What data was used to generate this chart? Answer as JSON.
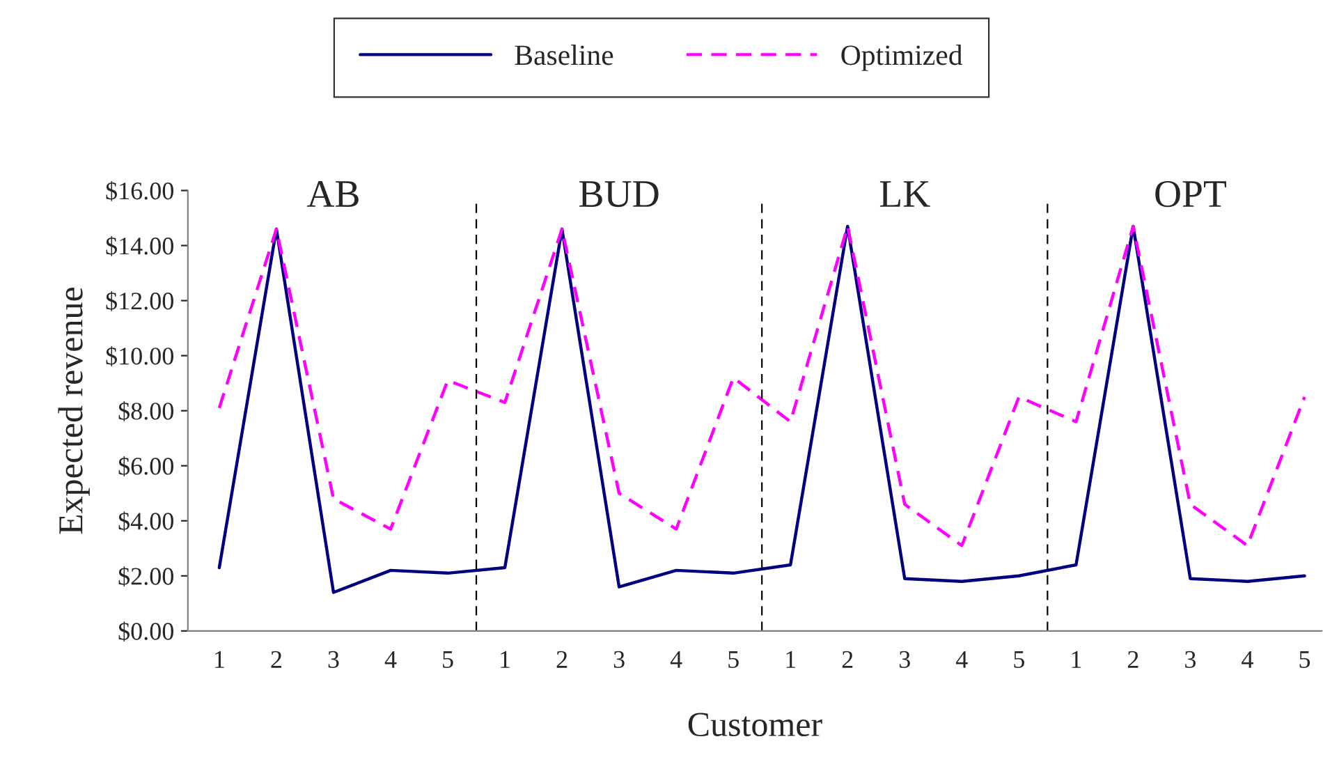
{
  "chart_data": {
    "type": "line",
    "xlabel": "Customer",
    "ylabel": "Expected revenue",
    "categories": [
      "1",
      "2",
      "3",
      "4",
      "5",
      "1",
      "2",
      "3",
      "4",
      "5",
      "1",
      "2",
      "3",
      "4",
      "5",
      "1",
      "2",
      "3",
      "4",
      "5"
    ],
    "series": [
      {
        "name": "Baseline",
        "color": "#000080",
        "line_style": "solid",
        "values": [
          2.3,
          14.6,
          1.4,
          2.2,
          2.1,
          2.3,
          14.6,
          1.6,
          2.2,
          2.1,
          2.4,
          14.7,
          1.9,
          1.8,
          2.0,
          2.4,
          14.7,
          1.9,
          1.8,
          2.0
        ]
      },
      {
        "name": "Optimized",
        "color": "#ff00ff",
        "line_style": "dashed",
        "values": [
          8.1,
          14.6,
          4.8,
          3.7,
          9.1,
          8.3,
          14.6,
          5.0,
          3.7,
          9.2,
          7.6,
          14.7,
          4.6,
          3.1,
          8.5,
          7.6,
          14.7,
          4.6,
          3.1,
          8.5
        ]
      }
    ],
    "ylim": [
      0,
      16
    ],
    "yticks": [
      {
        "value": 0,
        "label": "$0.00"
      },
      {
        "value": 2,
        "label": "$2.00"
      },
      {
        "value": 4,
        "label": "$4.00"
      },
      {
        "value": 6,
        "label": "$6.00"
      },
      {
        "value": 8,
        "label": "$8.00"
      },
      {
        "value": 10,
        "label": "$10.00"
      },
      {
        "value": 12,
        "label": "$12.00"
      },
      {
        "value": 14,
        "label": "$14.00"
      },
      {
        "value": 16,
        "label": "$16.00"
      }
    ],
    "annotations": [
      "AB",
      "BUD",
      "LK",
      "OPT"
    ],
    "grid": false,
    "legend": "top",
    "marker": "none"
  }
}
